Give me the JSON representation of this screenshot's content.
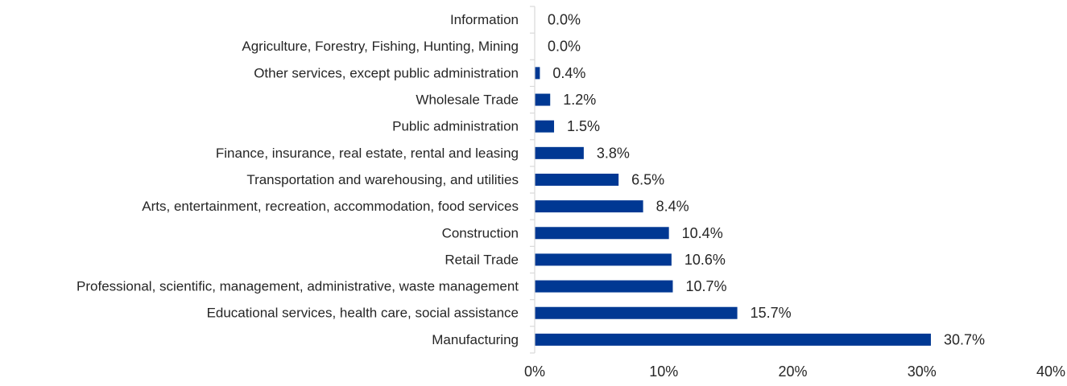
{
  "chart_data": {
    "type": "bar",
    "orientation": "horizontal",
    "title": "",
    "xlabel": "",
    "ylabel": "",
    "categories": [
      "Information",
      "Agriculture, Forestry, Fishing, Hunting, Mining",
      "Other services, except public administration",
      "Wholesale Trade",
      "Public administration",
      "Finance, insurance, real estate, rental and leasing",
      "Transportation and warehousing, and utilities",
      "Arts, entertainment, recreation, accommodation, food services",
      "Construction",
      "Retail Trade",
      "Professional, scientific, management, administrative, waste management",
      "Educational services, health care, social assistance",
      "Manufacturing"
    ],
    "values": [
      0.0,
      0.0,
      0.4,
      1.2,
      1.5,
      3.8,
      6.5,
      8.4,
      10.4,
      10.6,
      10.7,
      15.7,
      30.7
    ],
    "value_labels": [
      "0.0%",
      "0.0%",
      "0.4%",
      "1.2%",
      "1.5%",
      "3.8%",
      "6.5%",
      "8.4%",
      "10.4%",
      "10.6%",
      "10.7%",
      "15.7%",
      "30.7%"
    ],
    "xlim": [
      0,
      40
    ],
    "xticks": [
      0,
      10,
      20,
      30,
      40
    ],
    "xtick_labels": [
      "0%",
      "10%",
      "20%",
      "30%",
      "40%"
    ],
    "grid": false,
    "legend": "none",
    "bar_color": "#003893"
  }
}
